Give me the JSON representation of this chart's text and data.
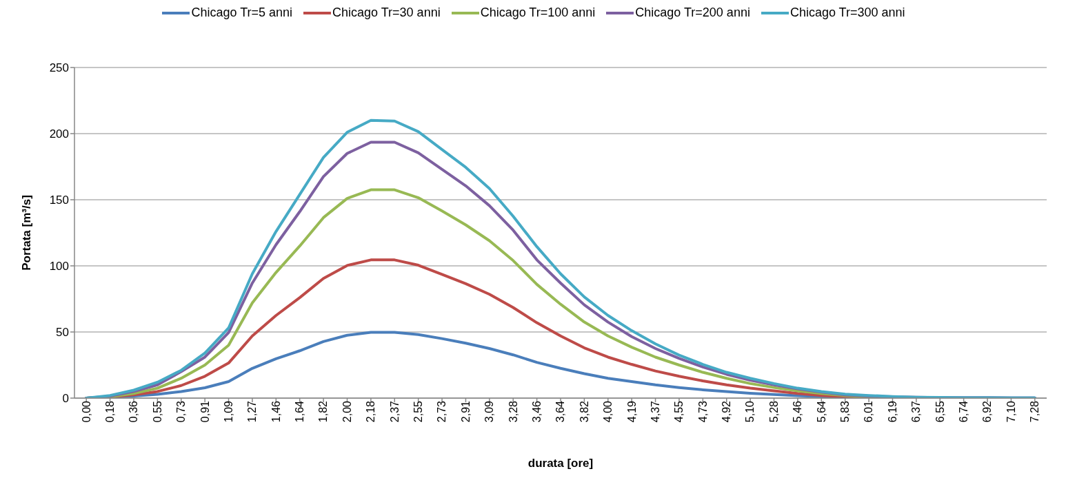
{
  "chart_data": {
    "type": "line",
    "xlabel": "durata [ore]",
    "ylabel": "Portata [m³/s]",
    "categories": [
      "0,00",
      "0,18",
      "0,36",
      "0,55",
      "0,73",
      "0,91",
      "1,09",
      "1,27",
      "1,46",
      "1,64",
      "1,82",
      "2,00",
      "2,18",
      "2,37",
      "2,55",
      "2,73",
      "2,91",
      "3,09",
      "3,28",
      "3,46",
      "3,64",
      "3,82",
      "4,00",
      "4,19",
      "4,37",
      "4,55",
      "4,73",
      "4,92",
      "5,10",
      "5,28",
      "5,46",
      "5,64",
      "5,83",
      "6,01",
      "6,19",
      "6,37",
      "6,55",
      "6,74",
      "6,92",
      "7,10",
      "7,28"
    ],
    "series": [
      {
        "name": "Chicago Tr=5 anni",
        "color": "#4a7ebb",
        "values": [
          0,
          0.8,
          1.6,
          2.9,
          4.9,
          7.8,
          12.5,
          22.5,
          29.7,
          35.8,
          42.8,
          47.5,
          49.7,
          49.7,
          48,
          45,
          41.5,
          37.5,
          32.7,
          27,
          22.5,
          18.5,
          15,
          12.5,
          10,
          8,
          6.3,
          4.9,
          3.7,
          2.7,
          1.8,
          1.2,
          0.8,
          0.5,
          0.4,
          0.3,
          0.3,
          0.2,
          0.2,
          0.1,
          0.1
        ]
      },
      {
        "name": "Chicago Tr=30 anni",
        "color": "#be4b48",
        "values": [
          0,
          0.8,
          2.5,
          5,
          9.5,
          16.5,
          26.5,
          47,
          62.5,
          76,
          90.5,
          100.3,
          104.5,
          104.5,
          100.5,
          93.5,
          86.5,
          78.5,
          68.5,
          57,
          47,
          38,
          31,
          25.5,
          20.5,
          16.5,
          13,
          10,
          7.5,
          5.5,
          3.5,
          2,
          1,
          0.5,
          null,
          null,
          null,
          null,
          null,
          null,
          null
        ]
      },
      {
        "name": "Chicago Tr=100 anni",
        "color": "#98b954",
        "values": [
          0,
          1,
          3.5,
          7.5,
          15,
          25,
          40,
          72,
          95,
          115,
          136.5,
          151,
          157.5,
          157.5,
          151.5,
          141.5,
          131,
          119,
          104,
          86,
          71,
          57.5,
          47,
          38.5,
          31,
          25,
          19.5,
          15,
          11,
          8,
          5.5,
          3.5,
          2,
          1,
          0.6,
          null,
          null,
          null,
          null,
          null,
          null
        ]
      },
      {
        "name": "Chicago Tr=200 anni",
        "color": "#7d60a0",
        "values": [
          0,
          1.5,
          5,
          10,
          20,
          31,
          49.5,
          87,
          116,
          141,
          167.5,
          185,
          193.5,
          193.5,
          185.5,
          173,
          160.5,
          145.5,
          127,
          104.5,
          87,
          70.5,
          57.5,
          46.5,
          37.5,
          30,
          23.5,
          18,
          13.5,
          10,
          7,
          4.5,
          2.5,
          1.5,
          1,
          0.6,
          0.4,
          0.3,
          0.2,
          0.1,
          0.1
        ]
      },
      {
        "name": "Chicago Tr=300 anni",
        "color": "#46aac5",
        "values": [
          0,
          2,
          6,
          12,
          21,
          34,
          53,
          94,
          126,
          154,
          182,
          201,
          210,
          209.5,
          201.5,
          188,
          174.5,
          158.5,
          137.5,
          114.5,
          94,
          76.5,
          62.5,
          51,
          41,
          32.5,
          25.5,
          19.5,
          15,
          11,
          7.5,
          5,
          3,
          2,
          1.2,
          0.7,
          0.5,
          0.3,
          0.2,
          0.1,
          0.1
        ]
      }
    ],
    "ylim": [
      0,
      250
    ],
    "yticks": [
      0,
      50,
      100,
      150,
      200,
      250
    ],
    "grid": "y",
    "legend": "top",
    "marker": "none",
    "line_style": "solid"
  }
}
